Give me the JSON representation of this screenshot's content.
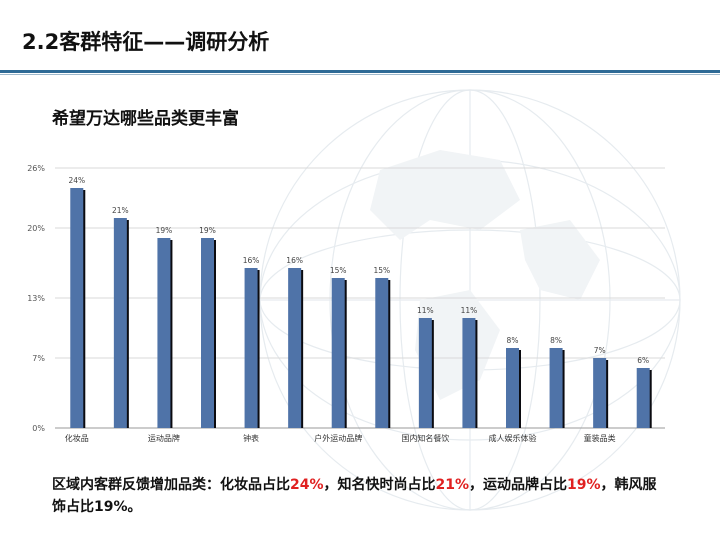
{
  "slide": {
    "title": "2.2客群特征——调研分析",
    "subtitle": "希望万达哪些品类更丰富"
  },
  "summary": {
    "part1": "区域内客群反馈增加品类：化妆品占比",
    "pct1": "24%",
    "part2": "，知名快时尚占比",
    "pct2": "21%",
    "part3": "，运动品牌占比",
    "pct3": "19%",
    "part4": "，韩风服饰占比19%。"
  },
  "colors": {
    "bar": "#4f73a8",
    "bar_shadow": "#0b0b10",
    "accent_red": "#e02020",
    "rule": "#2e6a96"
  },
  "chart_data": {
    "type": "bar",
    "values": [
      24,
      21,
      19,
      19,
      16,
      16,
      15,
      15,
      11,
      11,
      8,
      8,
      7,
      6
    ],
    "value_labels": [
      "24%",
      "21%",
      "19%",
      "19%",
      "16%",
      "16%",
      "15%",
      "15%",
      "11%",
      "11%",
      "8%",
      "8%",
      "7%",
      "6%"
    ],
    "categories": [
      "化妆品",
      "",
      "运动品牌",
      "",
      "钟表",
      "",
      "户外运动品牌",
      "",
      "国内知名餐饮",
      "",
      "成人娱乐体验",
      "",
      "童装品类",
      ""
    ],
    "yticks": [
      "0%",
      "7%",
      "13%",
      "20%",
      "26%"
    ],
    "ylim": [
      0,
      26
    ],
    "grid": true
  }
}
